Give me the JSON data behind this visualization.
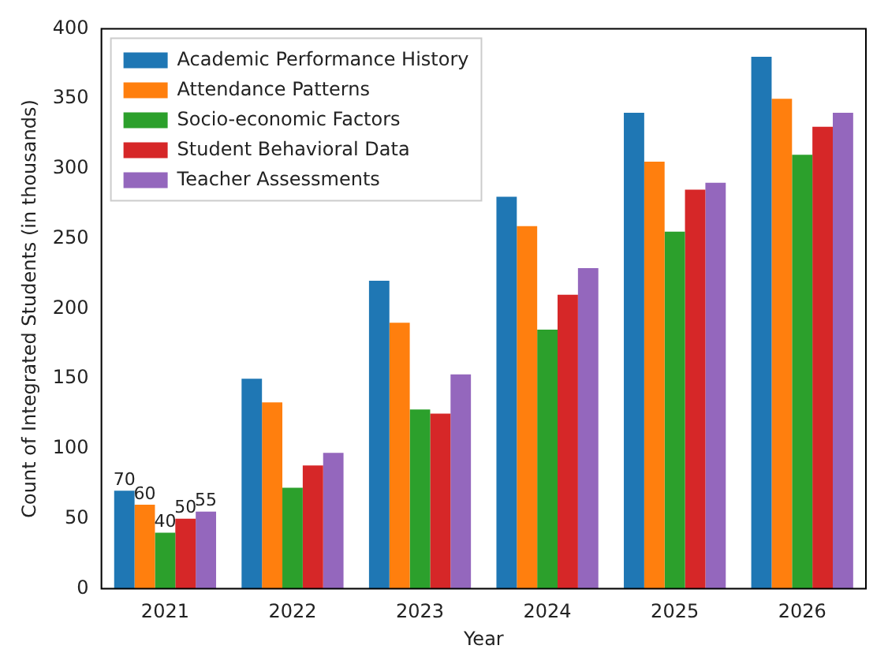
{
  "chart_data": {
    "type": "bar",
    "xlabel": "Year",
    "ylabel": "Count of Integrated Students (in thousands)",
    "categories": [
      "2021",
      "2022",
      "2023",
      "2024",
      "2025",
      "2026"
    ],
    "series": [
      {
        "name": "Academic Performance History",
        "color": "#1f77b4",
        "values": [
          70,
          150,
          220,
          280,
          340,
          380
        ],
        "value_labels": [
          "70",
          null,
          null,
          null,
          null,
          null
        ]
      },
      {
        "name": "Attendance Patterns",
        "color": "#ff7f0e",
        "values": [
          60,
          133,
          190,
          259,
          305,
          350
        ],
        "value_labels": [
          "60",
          null,
          null,
          null,
          null,
          null
        ]
      },
      {
        "name": "Socio-economic Factors",
        "color": "#2ca02c",
        "values": [
          40,
          72,
          128,
          185,
          255,
          310
        ],
        "value_labels": [
          "40",
          null,
          null,
          null,
          null,
          null
        ]
      },
      {
        "name": "Student Behavioral Data",
        "color": "#d62728",
        "values": [
          50,
          88,
          125,
          210,
          285,
          330
        ],
        "value_labels": [
          "50",
          null,
          null,
          null,
          null,
          null
        ]
      },
      {
        "name": "Teacher Assessments",
        "color": "#9467bd",
        "values": [
          55,
          97,
          153,
          229,
          290,
          340
        ],
        "value_labels": [
          "55",
          null,
          null,
          null,
          null,
          null
        ]
      }
    ],
    "ylim": [
      0,
      400
    ],
    "yticks": [
      0,
      50,
      100,
      150,
      200,
      250,
      300,
      350,
      400
    ],
    "grid": false,
    "legend": "top left"
  }
}
